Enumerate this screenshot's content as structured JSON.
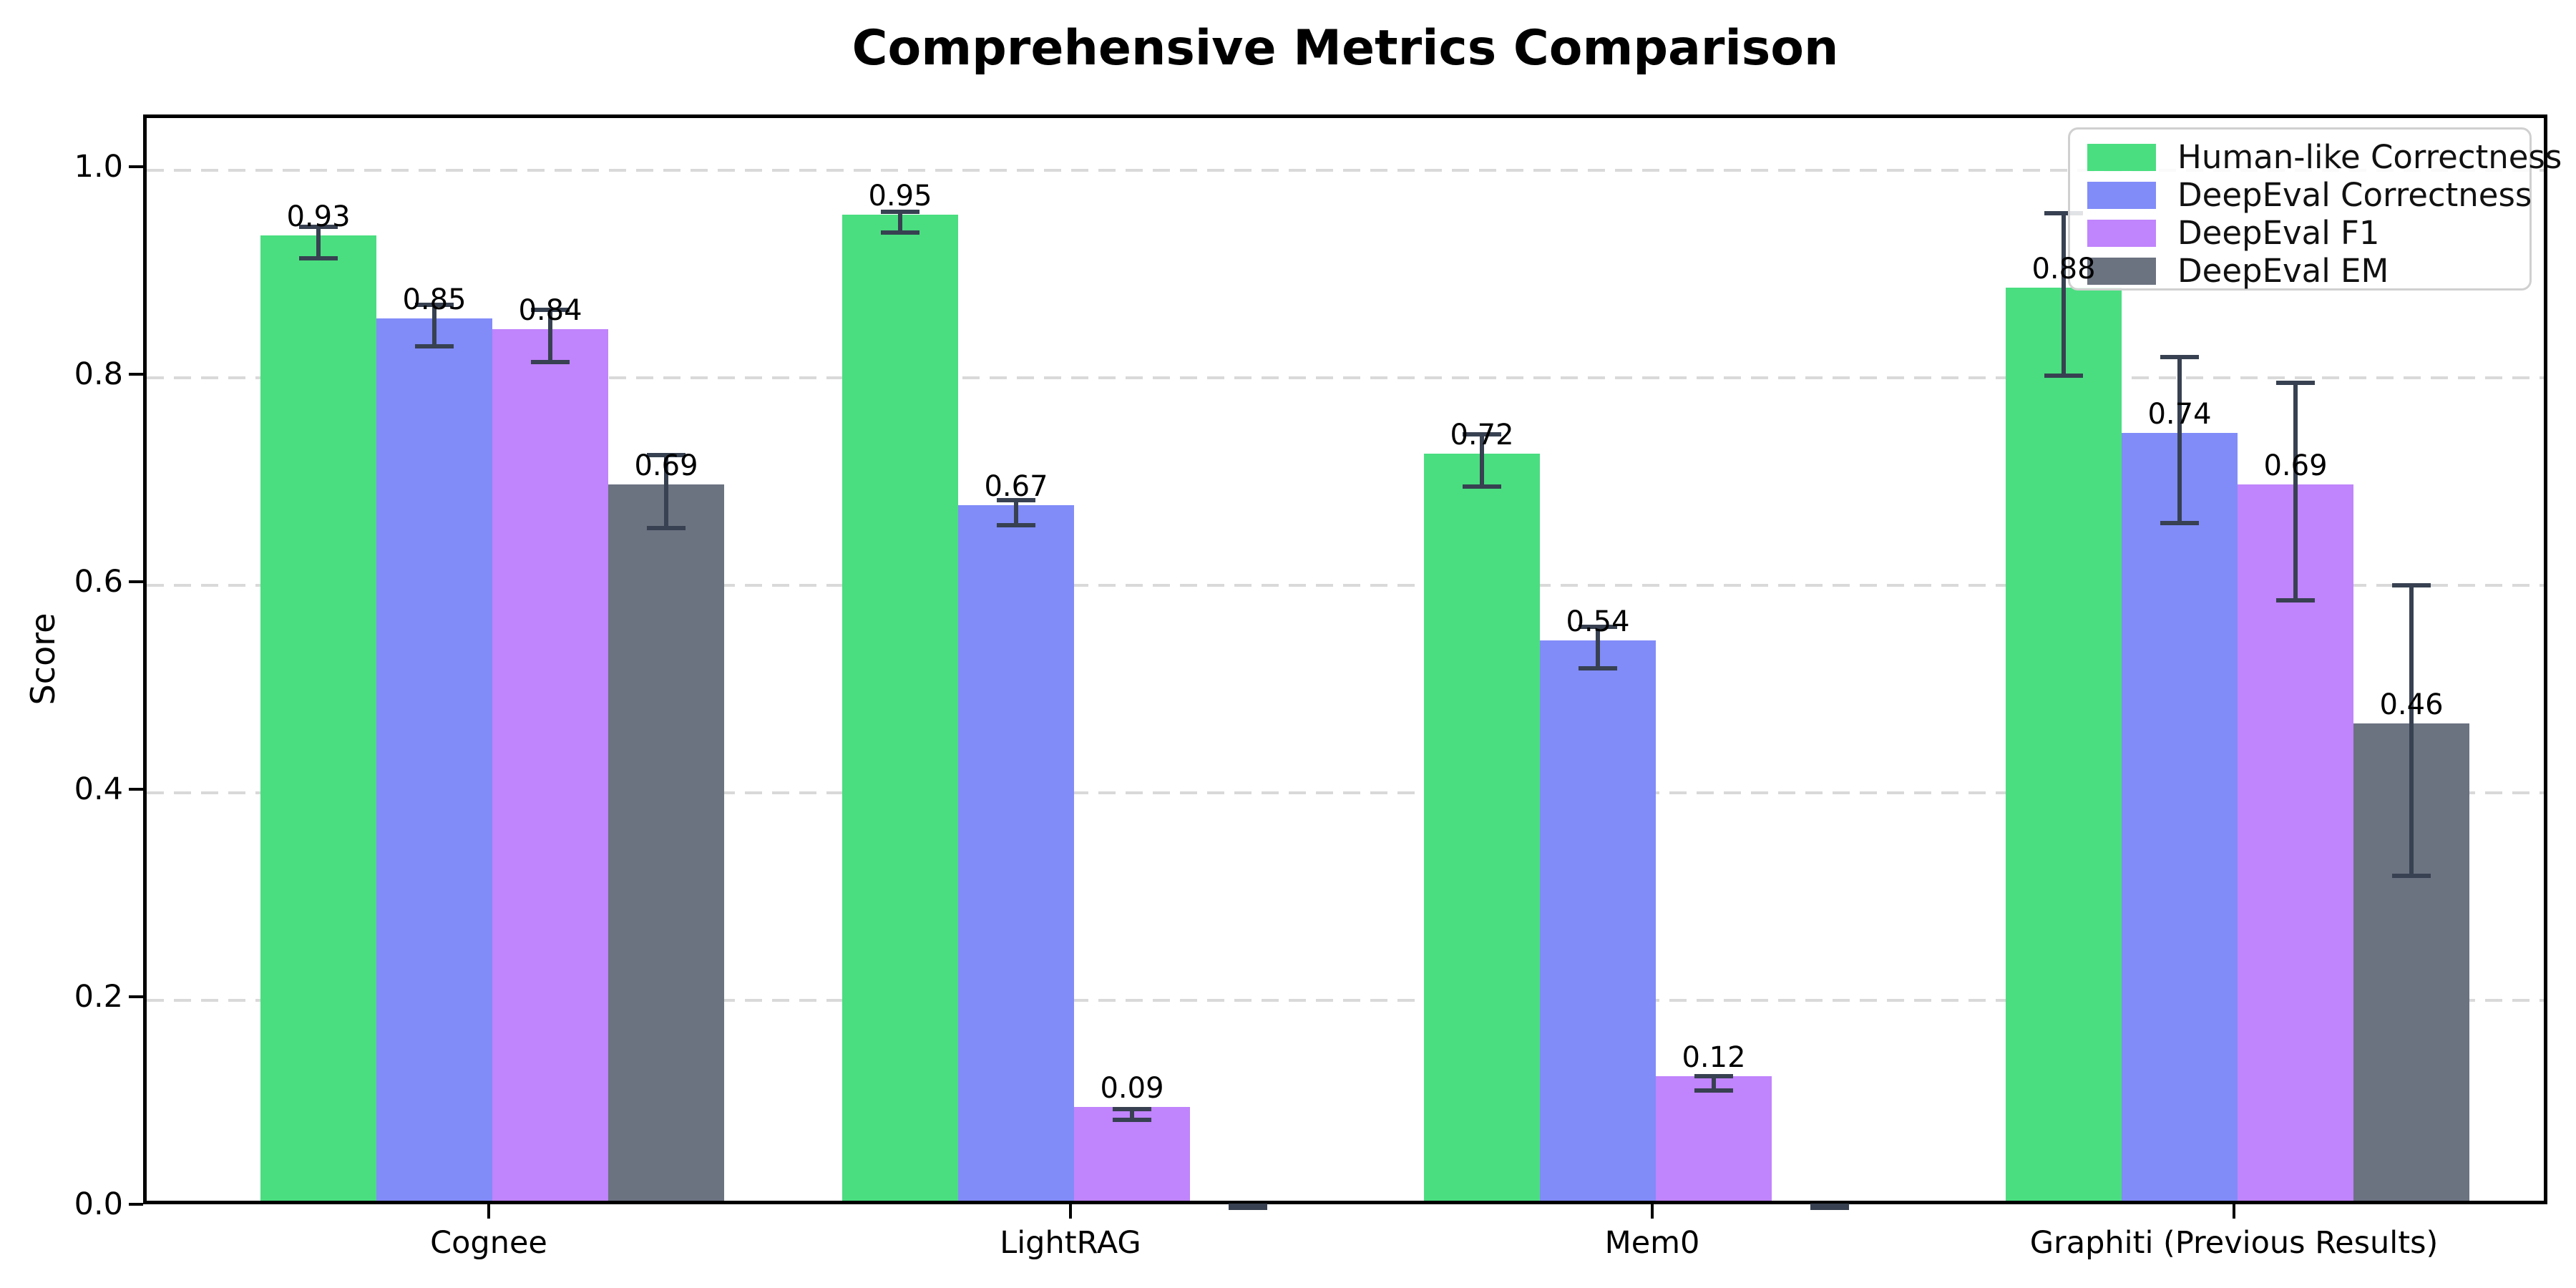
{
  "title": "Comprehensive Metrics Comparison",
  "chart_data": {
    "type": "bar",
    "title": "Comprehensive Metrics Comparison",
    "xlabel": "",
    "ylabel": "Score",
    "ylim": [
      0,
      1.05
    ],
    "yticks": [
      "0.0",
      "0.2",
      "0.4",
      "0.6",
      "0.8",
      "1.0"
    ],
    "grid": "horizontal dashed",
    "legend_position": "upper right",
    "categories": [
      "Cognee",
      "LightRAG",
      "Mem0",
      "Graphiti (Previous Results)"
    ],
    "series": [
      {
        "name": "Human-like Correctness",
        "color": "#4ade80",
        "values": [
          0.93,
          0.95,
          0.72,
          0.88
        ],
        "errors": [
          0.015,
          0.01,
          0.025,
          0.078
        ],
        "labels": [
          "0.93",
          "0.95",
          "0.72",
          "0.88"
        ]
      },
      {
        "name": "DeepEval Correctness",
        "color": "#818cf8",
        "values": [
          0.85,
          0.67,
          0.54,
          0.74
        ],
        "errors": [
          0.02,
          0.012,
          0.02,
          0.08
        ],
        "labels": [
          "0.85",
          "0.67",
          "0.54",
          "0.74"
        ]
      },
      {
        "name": "DeepEval F1",
        "color": "#c084fc",
        "values": [
          0.84,
          0.09,
          0.12,
          0.69
        ],
        "errors": [
          0.025,
          0.005,
          0.007,
          0.105
        ],
        "labels": [
          "0.84",
          "0.09",
          "0.12",
          "0.69"
        ]
      },
      {
        "name": "DeepEval EM",
        "color": "#6b7280",
        "values": [
          0.69,
          0.0,
          0.0,
          0.46
        ],
        "errors": [
          0.035,
          0.002,
          0.002,
          0.14
        ],
        "labels": [
          "0.69",
          null,
          null,
          "0.46"
        ]
      }
    ]
  },
  "colors": {
    "error_bar": "#374151",
    "grid": "#d9d9d9",
    "spine": "#000000",
    "background": "#ffffff",
    "legend_border": "#d0d0d0"
  }
}
